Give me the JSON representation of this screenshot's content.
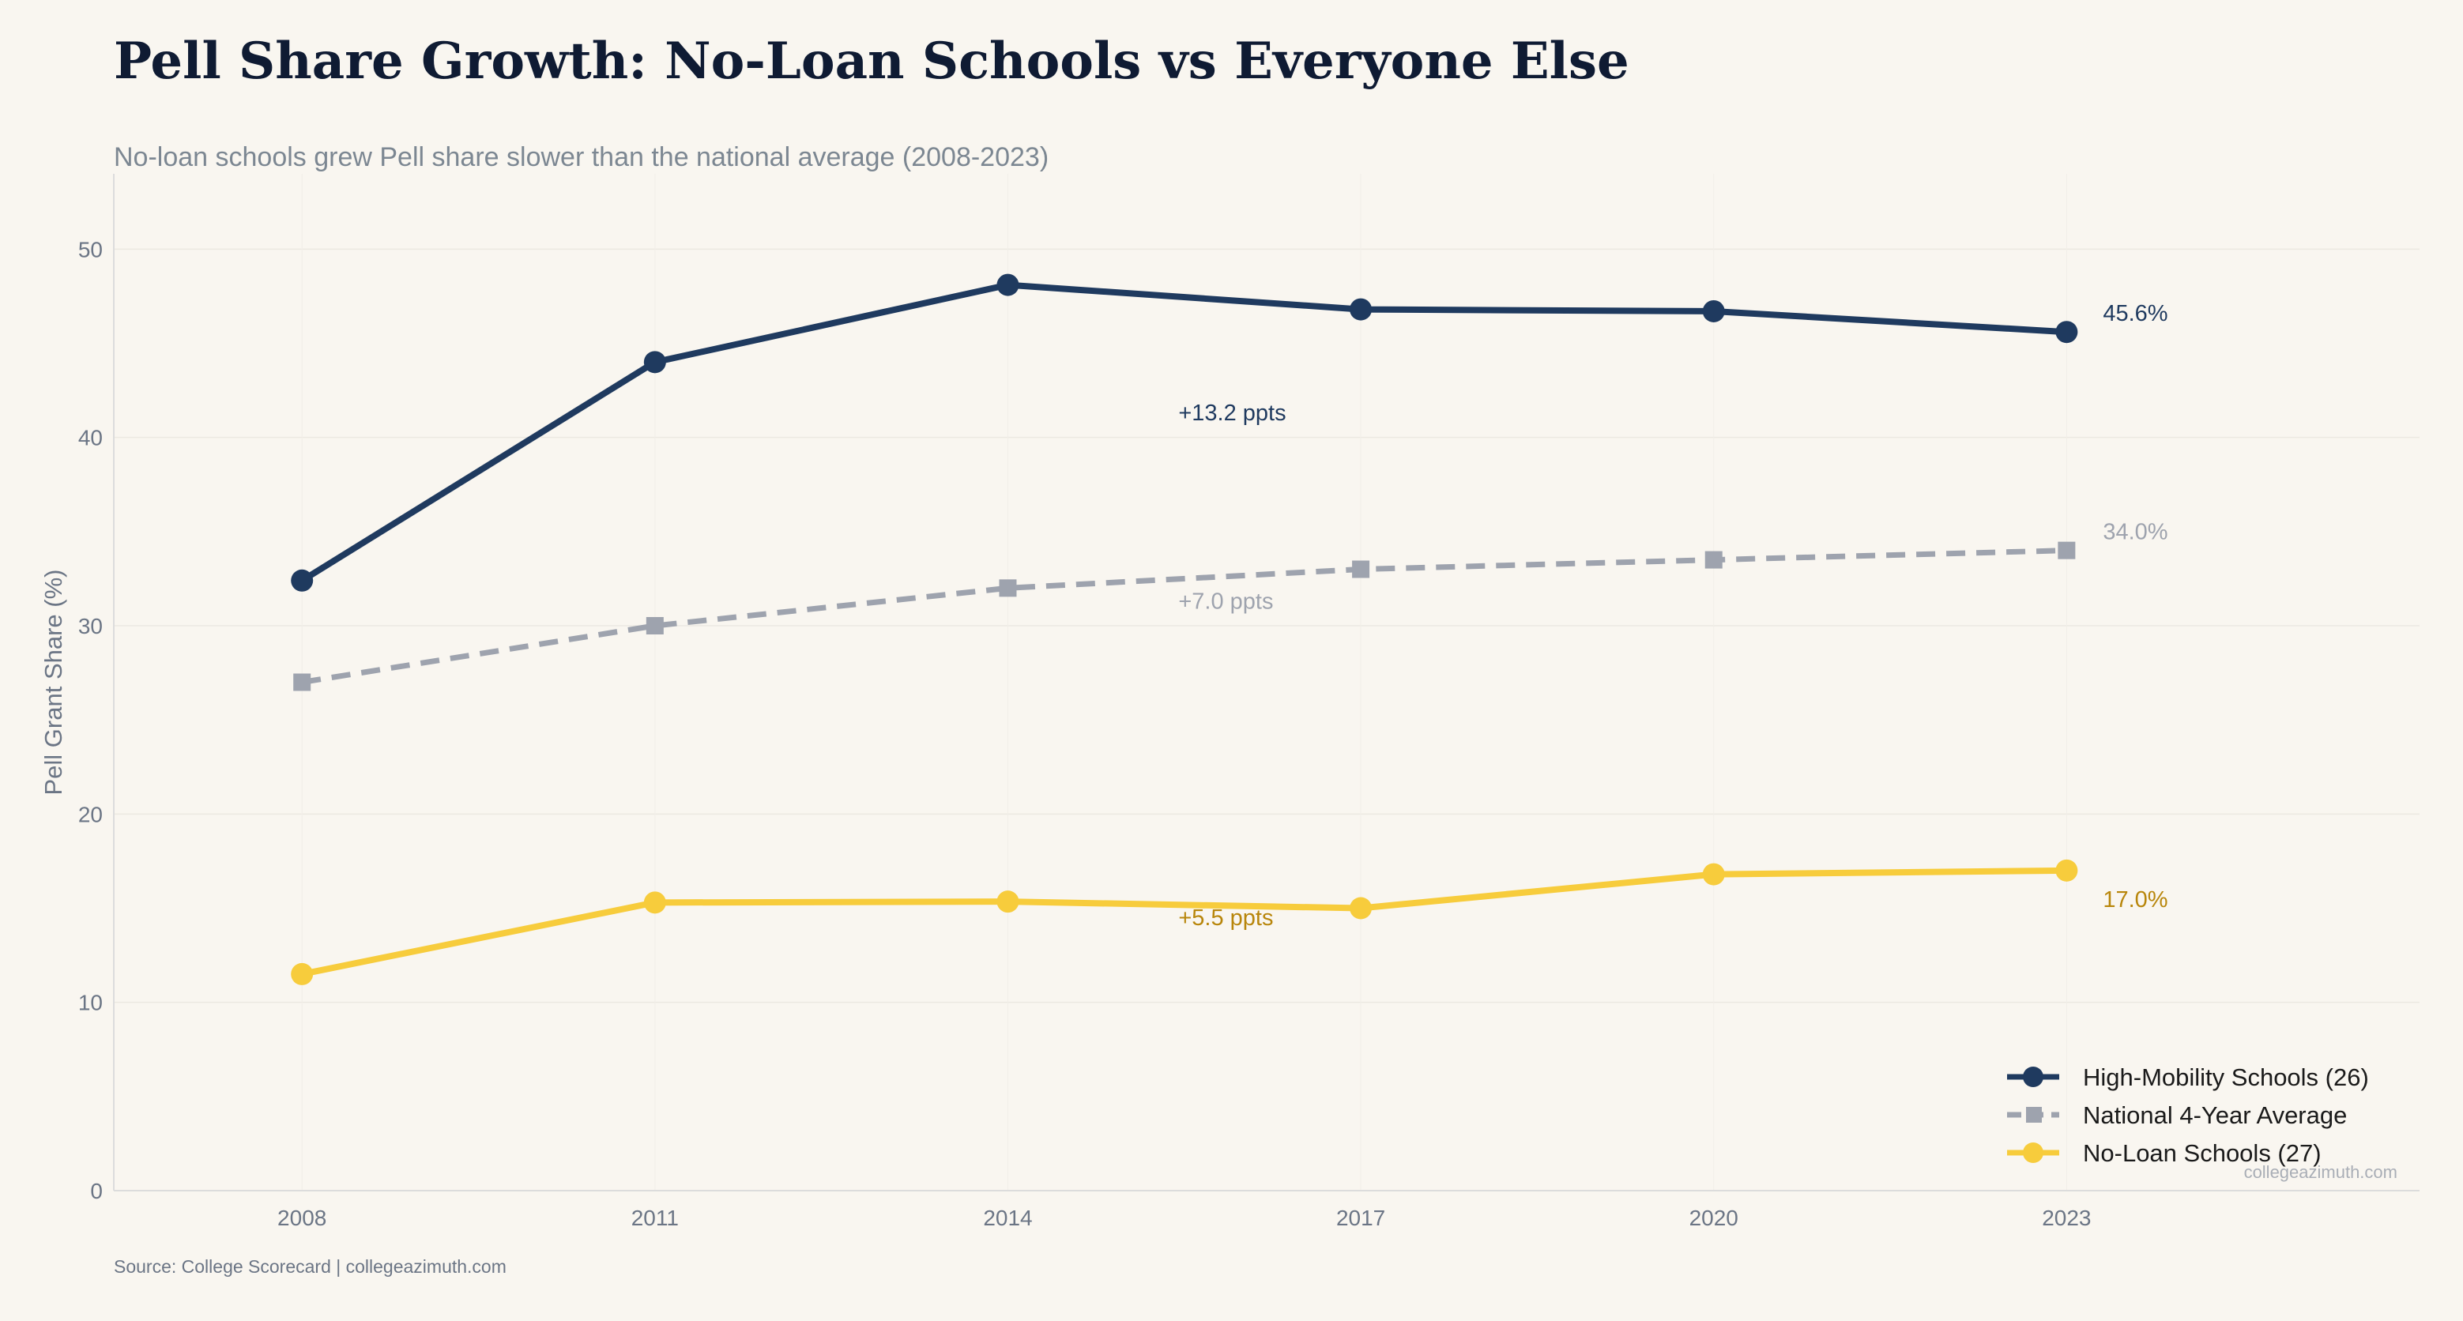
{
  "title": "Pell Share Growth: No-Loan Schools vs Everyone Else",
  "subtitle": "No-loan schools grew Pell share slower than the national average (2008-2023)",
  "source": "Source: College Scorecard | collegeazimuth.com",
  "watermark": "collegeazimuth.com",
  "chart_data": {
    "type": "line",
    "x": [
      2008,
      2011,
      2014,
      2017,
      2020,
      2023
    ],
    "xlim": [
      2006.4,
      2026.0
    ],
    "ylim": [
      0,
      54
    ],
    "yticks": [
      0,
      10,
      20,
      30,
      40,
      50
    ],
    "ylabel": "Pell Grant Share (%)",
    "xlabel": "",
    "grid": true,
    "legend_position": "bottom-right",
    "series": [
      {
        "name": "High-Mobility Schools (26)",
        "values": [
          32.4,
          44.0,
          48.1,
          46.8,
          46.7,
          45.6
        ],
        "color": "#1f3a5f",
        "marker": "circle",
        "dash": "solid",
        "end_label": "45.6%",
        "end_label_color": "#1f3a5f",
        "annotation": "+13.2 ppts",
        "annotation_color": "#1f3a5f"
      },
      {
        "name": "National 4-Year Average",
        "values": [
          27.0,
          30.0,
          32.0,
          33.0,
          33.5,
          34.0
        ],
        "color": "#9ea3ae",
        "marker": "square",
        "dash": "dashed",
        "end_label": "34.0%",
        "end_label_color": "#9ea3ae",
        "annotation": "+7.0 ppts",
        "annotation_color": "#9ea3ae"
      },
      {
        "name": "No-Loan Schools (27)",
        "values": [
          11.5,
          15.3,
          15.35,
          15.0,
          16.8,
          17.0
        ],
        "color": "#f7cc3c",
        "marker": "circle",
        "dash": "solid",
        "end_label": "17.0%",
        "end_label_color": "#b8860b",
        "annotation": "+5.5 ppts",
        "annotation_color": "#b8860b"
      }
    ]
  }
}
